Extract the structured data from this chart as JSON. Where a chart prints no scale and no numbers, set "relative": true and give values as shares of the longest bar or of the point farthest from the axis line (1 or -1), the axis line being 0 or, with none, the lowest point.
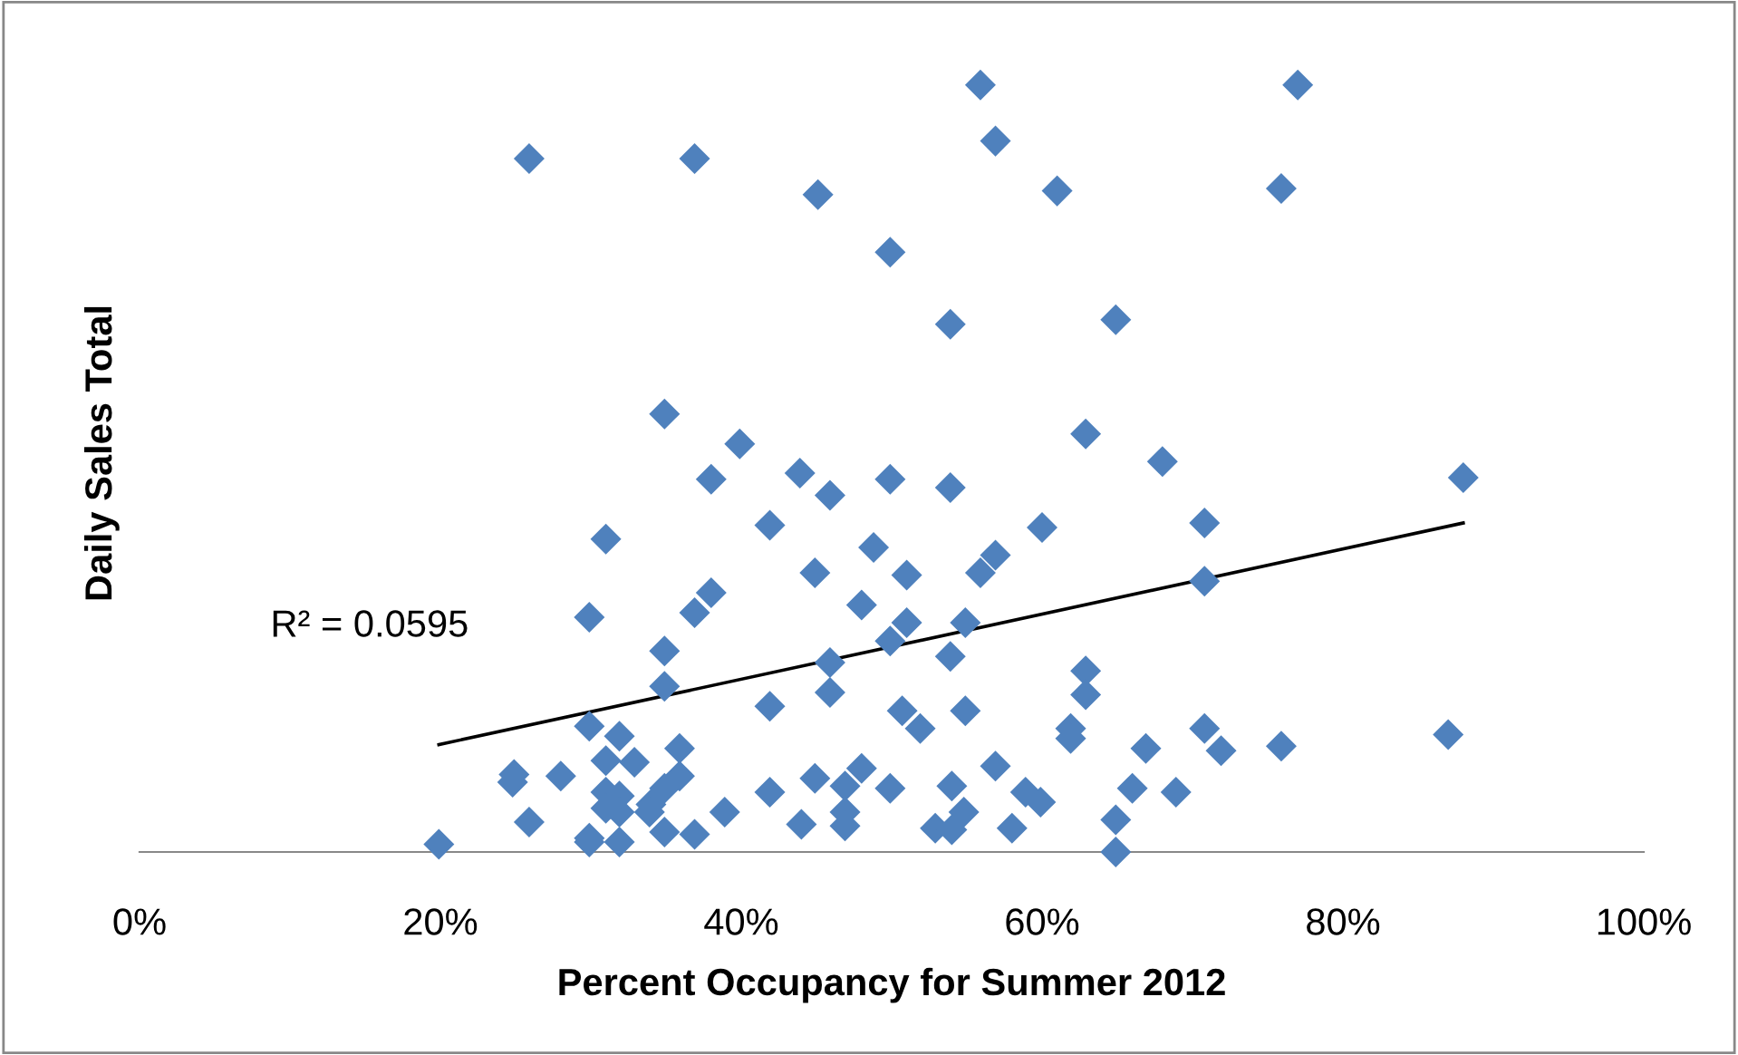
{
  "chart_data": {
    "type": "scatter",
    "relative": true,
    "xlabel": "Percent Occupancy for Summer 2012",
    "ylabel": "Daily Sales Total",
    "xlim": [
      0,
      100
    ],
    "xticks": [
      {
        "value": 0,
        "label": "0%"
      },
      {
        "value": 20,
        "label": "20%"
      },
      {
        "value": 40,
        "label": "40%"
      },
      {
        "value": 60,
        "label": "60%"
      },
      {
        "value": 80,
        "label": "80%"
      },
      {
        "value": 100,
        "label": "100%"
      }
    ],
    "marker": "diamond",
    "grid": false,
    "legend": false,
    "annotations": [
      "R² = 0.0595"
    ],
    "series": [
      {
        "color": "#4f81bd",
        "x": [
          19.9,
          25.9,
          36.9,
          45.1,
          49.9,
          55.9,
          56.9,
          61.0,
          77.0,
          75.9,
          64.9,
          53.9,
          34.9,
          39.9,
          62.9,
          68.0,
          88.0,
          38.0,
          43.9,
          49.9,
          53.9,
          45.9,
          41.9,
          60.0,
          70.8,
          31.0,
          48.8,
          44.9,
          51.0,
          56.9,
          55.9,
          38.0,
          36.9,
          48.0,
          29.9,
          70.8,
          34.9,
          45.9,
          51.0,
          54.9,
          49.9,
          53.9,
          34.9,
          45.9,
          62.9,
          62.9,
          41.9,
          50.7,
          54.9,
          29.9,
          31.9,
          51.9,
          70.8,
          61.9,
          87.0,
          75.9,
          66.9,
          71.9,
          61.9,
          35.9,
          32.9,
          31.0,
          24.9,
          28.0,
          35.9,
          44.9,
          48.0,
          56.9,
          54.0,
          46.9,
          49.9,
          41.9,
          58.9,
          24.8,
          31.0,
          34.9,
          31.9,
          34.0,
          66.0,
          68.9,
          31.9,
          31.0,
          33.9,
          38.9,
          44.0,
          46.9,
          54.8,
          59.9,
          25.9,
          34.9,
          36.9,
          29.9,
          31.9,
          52.9,
          54.0,
          58.0,
          64.9,
          46.9,
          64.9,
          29.9
        ],
        "values": [
          0.01,
          0.904,
          0.904,
          0.857,
          0.782,
          1.0,
          0.927,
          0.862,
          1.0,
          0.865,
          0.694,
          0.688,
          0.571,
          0.532,
          0.545,
          0.509,
          0.488,
          0.486,
          0.494,
          0.486,
          0.475,
          0.465,
          0.426,
          0.423,
          0.429,
          0.408,
          0.397,
          0.364,
          0.361,
          0.387,
          0.364,
          0.338,
          0.312,
          0.322,
          0.306,
          0.353,
          0.262,
          0.247,
          0.299,
          0.299,
          0.275,
          0.255,
          0.216,
          0.208,
          0.236,
          0.205,
          0.19,
          0.184,
          0.184,
          0.164,
          0.151,
          0.161,
          0.161,
          0.161,
          0.153,
          0.138,
          0.135,
          0.132,
          0.148,
          0.135,
          0.117,
          0.119,
          0.101,
          0.099,
          0.099,
          0.096,
          0.109,
          0.112,
          0.086,
          0.086,
          0.083,
          0.078,
          0.078,
          0.091,
          0.078,
          0.083,
          0.073,
          0.062,
          0.083,
          0.078,
          0.052,
          0.057,
          0.052,
          0.052,
          0.036,
          0.052,
          0.052,
          0.065,
          0.039,
          0.026,
          0.023,
          0.018,
          0.013,
          0.031,
          0.029,
          0.031,
          0.042,
          0.034,
          0,
          0.013
        ]
      },
      {
        "type": "line",
        "marker": "none",
        "color": "#000000",
        "x": [
          19.9,
          88.0
        ],
        "values": [
          0.14,
          0.429
        ]
      }
    ]
  }
}
